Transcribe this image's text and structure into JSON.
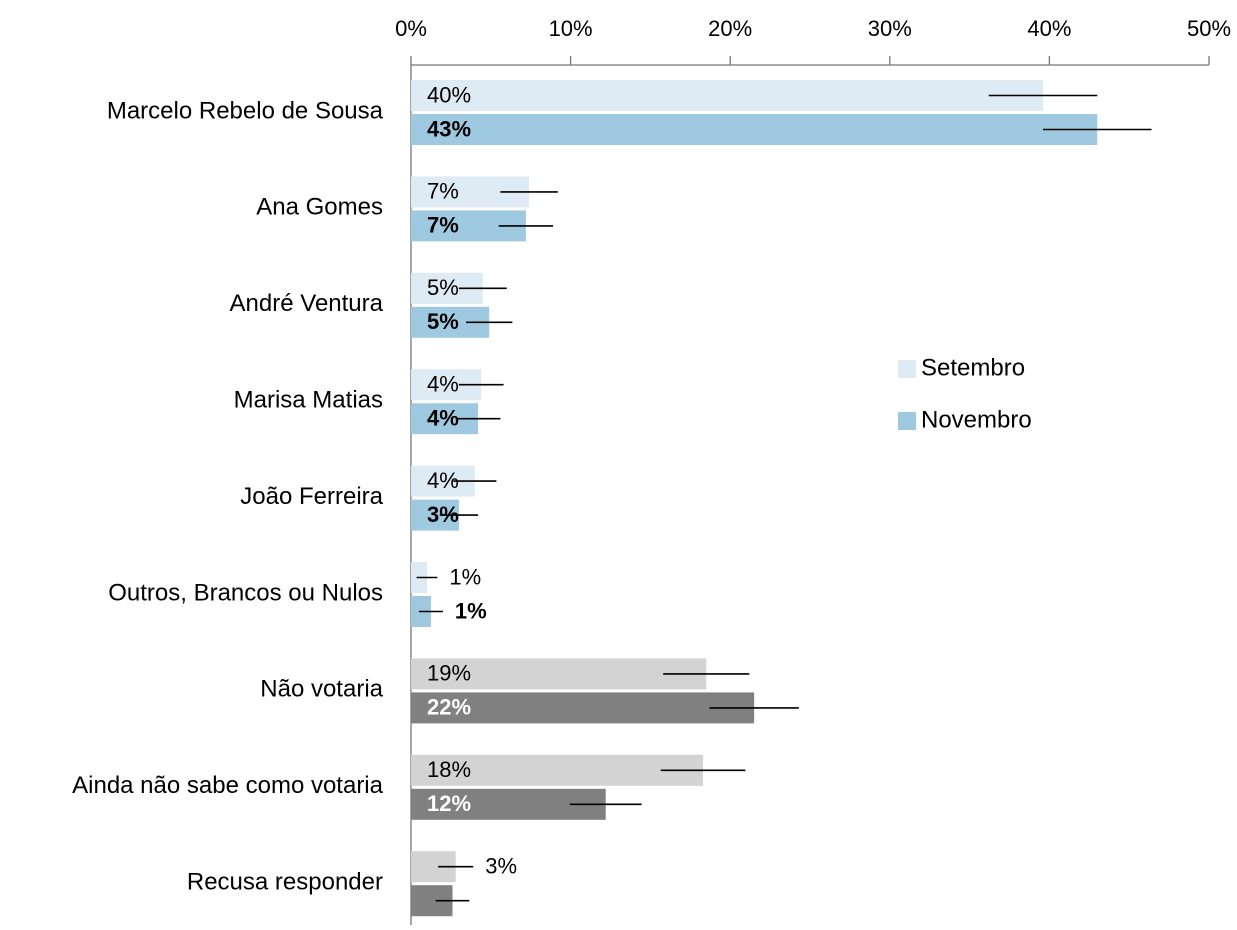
{
  "chart_data": {
    "type": "bar",
    "orientation": "horizontal",
    "categories": [
      "Marcelo Rebelo de Sousa",
      "Ana Gomes",
      "André Ventura",
      "Marisa Matias",
      "João Ferreira",
      "Outros, Brancos ou Nulos",
      "Não votaria",
      "Ainda não sabe como votaria",
      "Recusa responder"
    ],
    "series": [
      {
        "name": "Setembro",
        "color": "#deeaf4",
        "colors": [
          "#deeaf4",
          "#deeaf4",
          "#deeaf4",
          "#deeaf4",
          "#deeaf4",
          "#deeaf4",
          "#d3d3d3",
          "#d3d3d3",
          "#d3d3d3"
        ],
        "values": [
          39.6,
          7.4,
          4.5,
          4.4,
          4.0,
          1.0,
          18.5,
          18.3,
          2.8
        ],
        "value_labels": [
          "40%",
          "7%",
          "5%",
          "4%",
          "4%",
          "1%",
          "19%",
          "18%",
          "3%"
        ],
        "errors": [
          3.4,
          1.8,
          1.5,
          1.4,
          1.35,
          0.65,
          2.7,
          2.65,
          1.1
        ]
      },
      {
        "name": "Novembro",
        "color": "#9fc9e0",
        "colors": [
          "#9fc9e0",
          "#9fc9e0",
          "#9fc9e0",
          "#9fc9e0",
          "#9fc9e0",
          "#9fc9e0",
          "#808080",
          "#808080",
          "#808080"
        ],
        "values": [
          43.0,
          7.2,
          4.9,
          4.2,
          3.0,
          1.25,
          21.5,
          12.2,
          2.6
        ],
        "value_labels": [
          "43%",
          "7%",
          "5%",
          "4%",
          "3%",
          "1%",
          "22%",
          "12%",
          "3%"
        ],
        "errors": [
          3.4,
          1.7,
          1.45,
          1.4,
          1.2,
          0.75,
          2.8,
          2.25,
          1.05
        ]
      }
    ],
    "xlim": [
      0,
      50
    ],
    "xticks": [
      {
        "value": 0,
        "label": "0%"
      },
      {
        "value": 10,
        "label": "10%"
      },
      {
        "value": 20,
        "label": "20%"
      },
      {
        "value": 30,
        "label": "30%"
      },
      {
        "value": 40,
        "label": "40%"
      },
      {
        "value": 50,
        "label": "50%"
      }
    ],
    "legend": "right"
  }
}
